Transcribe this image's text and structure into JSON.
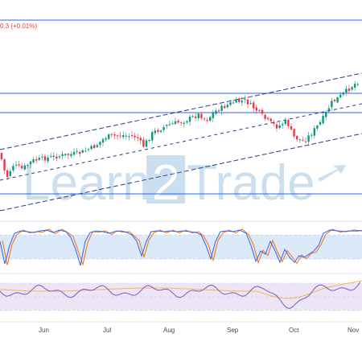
{
  "header": {
    "change_text": "0.3 (+0.01%)",
    "change_color": "#f23645"
  },
  "watermark": {
    "text_left": "Learn",
    "text_digit": "2",
    "text_right": "Trade",
    "color": "#4a90c8"
  },
  "colors": {
    "up": "#089981",
    "down": "#f23645",
    "channel": "#2a3a8c",
    "level_line": "#2962ff",
    "stoch_k": "#2962ff",
    "stoch_d": "#ff6d00",
    "rsi_line": "#7e57c2",
    "rsi_ma": "#f5b74f",
    "stoch_band": "#dce9f8",
    "rsi_band": "#ece5f6"
  },
  "chart_data": [
    {
      "type": "candlestick",
      "x_labels": [
        "Jun",
        "Jul",
        "Aug",
        "Sep",
        "Oct",
        "Nov"
      ],
      "horizontal_levels_count": 4,
      "trend_channel": true,
      "grid": false
    },
    {
      "type": "line",
      "indicator": "stochastic",
      "series": [
        {
          "values": []
        },
        {
          "values": []
        }
      ]
    },
    {
      "type": "line",
      "indicator": "rsi",
      "series": [
        {
          "values": []
        },
        {
          "values": []
        }
      ]
    }
  ]
}
